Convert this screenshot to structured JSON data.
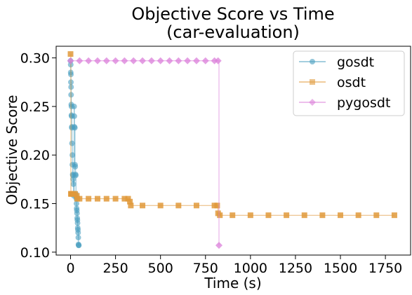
{
  "chart_data": {
    "type": "line",
    "title": "Objective Score vs Time",
    "subtitle": "(car-evaluation)",
    "xlabel": "Time (s)",
    "ylabel": "Objective Score",
    "xlim": [
      -80,
      1890
    ],
    "ylim": [
      0.097,
      0.312
    ],
    "xticks": [
      0,
      250,
      500,
      750,
      1000,
      1250,
      1500,
      1750
    ],
    "yticks": [
      0.1,
      0.15,
      0.2,
      0.25,
      0.3
    ],
    "xtick_labels": [
      "0",
      "250",
      "500",
      "750",
      "1000",
      "1250",
      "1500",
      "1750"
    ],
    "ytick_labels": [
      "0.10",
      "0.15",
      "0.20",
      "0.25",
      "0.30"
    ],
    "grid": false,
    "legend_position": "top-right",
    "series": [
      {
        "name": "gosdt",
        "color": "#4a9ebf",
        "marker": "circle",
        "x": [
          0,
          1,
          1,
          2,
          2,
          3,
          3,
          4,
          5,
          5,
          6,
          7,
          7,
          8,
          10,
          10,
          12,
          13,
          14,
          16,
          17,
          18,
          20,
          21,
          22,
          24,
          25,
          26,
          28,
          29,
          30,
          31,
          32,
          33,
          34,
          35,
          36,
          37,
          38,
          39,
          40,
          41,
          42,
          43,
          44,
          45,
          46
        ],
        "y": [
          0.297,
          0.293,
          0.285,
          0.283,
          0.275,
          0.27,
          0.262,
          0.252,
          0.25,
          0.241,
          0.24,
          0.229,
          0.228,
          0.212,
          0.2,
          0.19,
          0.18,
          0.179,
          0.175,
          0.17,
          0.16,
          0.158,
          0.25,
          0.24,
          0.229,
          0.228,
          0.19,
          0.188,
          0.18,
          0.179,
          0.16,
          0.157,
          0.155,
          0.15,
          0.145,
          0.143,
          0.14,
          0.135,
          0.133,
          0.13,
          0.125,
          0.123,
          0.12,
          0.115,
          0.108,
          0.107,
          0.107
        ]
      },
      {
        "name": "osdt",
        "color": "#e0993a",
        "marker": "square",
        "x": [
          0,
          2,
          4,
          8,
          15,
          25,
          35,
          37,
          50,
          100,
          150,
          200,
          250,
          300,
          320,
          330,
          335,
          400,
          500,
          600,
          700,
          800,
          815,
          820,
          830,
          900,
          1000,
          1100,
          1200,
          1300,
          1400,
          1500,
          1600,
          1700,
          1800
        ],
        "y": [
          0.304,
          0.16,
          0.16,
          0.16,
          0.16,
          0.16,
          0.158,
          0.155,
          0.155,
          0.155,
          0.155,
          0.155,
          0.155,
          0.155,
          0.155,
          0.152,
          0.148,
          0.148,
          0.148,
          0.148,
          0.148,
          0.148,
          0.148,
          0.14,
          0.138,
          0.138,
          0.138,
          0.138,
          0.138,
          0.138,
          0.138,
          0.138,
          0.138,
          0.138,
          0.138
        ]
      },
      {
        "name": "pygosdt",
        "color": "#db7fd9",
        "marker": "diamond",
        "x": [
          0,
          50,
          100,
          150,
          200,
          250,
          300,
          350,
          400,
          450,
          500,
          550,
          600,
          650,
          700,
          750,
          800,
          820,
          825
        ],
        "y": [
          0.297,
          0.297,
          0.297,
          0.297,
          0.297,
          0.297,
          0.297,
          0.297,
          0.297,
          0.297,
          0.297,
          0.297,
          0.297,
          0.297,
          0.297,
          0.297,
          0.297,
          0.297,
          0.107
        ]
      }
    ]
  }
}
